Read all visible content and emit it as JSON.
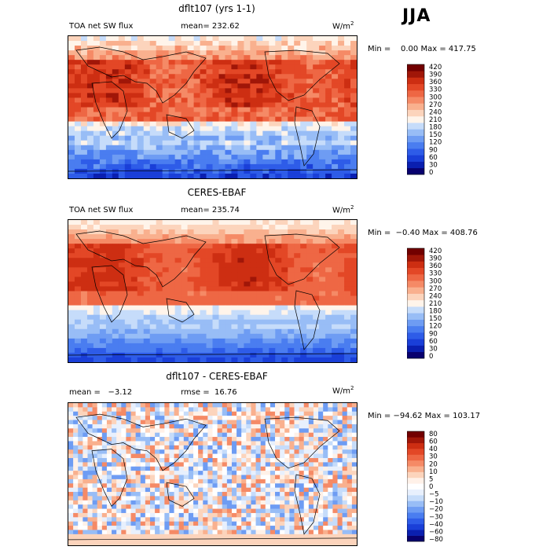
{
  "season": "JJA",
  "colors": {
    "flux": [
      "#08006e",
      "#0a1fb0",
      "#1a3fd8",
      "#2e5ce8",
      "#4a7df0",
      "#6e9cf3",
      "#98bdf6",
      "#c6dcfa",
      "#fff4ea",
      "#fcd4bc",
      "#f9b08e",
      "#f58a66",
      "#ee6744",
      "#e34726",
      "#cd2e12",
      "#a01608",
      "#720000"
    ],
    "diff": [
      "#08006e",
      "#0a1fb0",
      "#1a3fd8",
      "#2e5ce8",
      "#4a7df0",
      "#6e9cf3",
      "#98bdf6",
      "#c6dcfa",
      "#e8f0fd",
      "#ffffff",
      "#fff1e8",
      "#fcd4bc",
      "#f9b08e",
      "#f58a66",
      "#ee6744",
      "#e34726",
      "#cd2e12",
      "#a01608",
      "#720000"
    ]
  },
  "panels": [
    {
      "title": "dflt107 (yrs 1-1)",
      "left_text": "TOA net SW flux",
      "center_text": "mean= 232.62",
      "units": "W/m",
      "units_sup": "2",
      "min_max": "Min =    0.00 Max = 417.75",
      "colorbar_labels": [
        "420",
        "390",
        "360",
        "330",
        "300",
        "270",
        "240",
        "210",
        "180",
        "150",
        "120",
        "90",
        "60",
        "30",
        "0"
      ]
    },
    {
      "title": "CERES-EBAF",
      "left_text": "TOA net SW flux",
      "center_text": "mean= 235.74",
      "units": "W/m",
      "units_sup": "2",
      "min_max": "Min =  −0.40 Max = 408.76",
      "colorbar_labels": [
        "420",
        "390",
        "360",
        "330",
        "300",
        "270",
        "240",
        "210",
        "180",
        "150",
        "120",
        "90",
        "60",
        "30",
        "0"
      ]
    },
    {
      "title": "dflt107 - CERES-EBAF",
      "left_text": "mean =   −3.12",
      "center_text": "rmse =  16.76",
      "units": "W/m",
      "units_sup": "2",
      "min_max": "Min = −94.62 Max = 103.17",
      "colorbar_labels": [
        "80",
        "60",
        "40",
        "30",
        "20",
        "10",
        "5",
        "0",
        "−5",
        "−10",
        "−20",
        "−30",
        "−40",
        "−60",
        "−80"
      ]
    }
  ],
  "chart_data": [
    {
      "type": "heatmap",
      "title": "dflt107 (yrs 1-1)",
      "variable": "TOA net SW flux",
      "season": "JJA",
      "units": "W/m2",
      "mean": 232.62,
      "min": 0.0,
      "max": 417.75,
      "colorbar_levels": [
        0,
        30,
        60,
        90,
        120,
        150,
        180,
        210,
        240,
        270,
        300,
        330,
        360,
        390,
        420
      ]
    },
    {
      "type": "heatmap",
      "title": "CERES-EBAF",
      "variable": "TOA net SW flux",
      "season": "JJA",
      "units": "W/m2",
      "mean": 235.74,
      "min": -0.4,
      "max": 408.76,
      "colorbar_levels": [
        0,
        30,
        60,
        90,
        120,
        150,
        180,
        210,
        240,
        270,
        300,
        330,
        360,
        390,
        420
      ]
    },
    {
      "type": "heatmap",
      "title": "dflt107 - CERES-EBAF",
      "season": "JJA",
      "units": "W/m2",
      "mean": -3.12,
      "rmse": 16.76,
      "min": -94.62,
      "max": 103.17,
      "colorbar_levels": [
        -80,
        -60,
        -40,
        -30,
        -20,
        -10,
        -5,
        0,
        5,
        10,
        20,
        30,
        40,
        60,
        80
      ]
    }
  ]
}
